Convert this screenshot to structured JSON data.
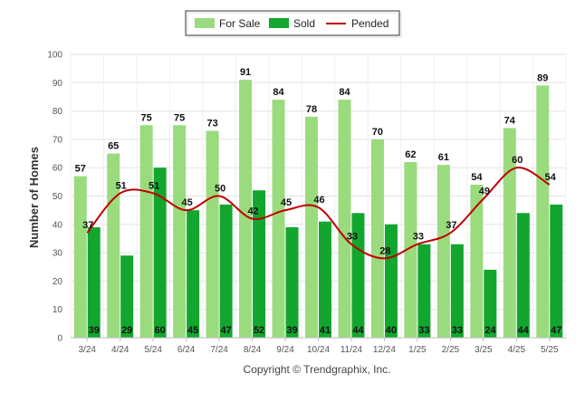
{
  "chart_data": {
    "type": "bar",
    "categories": [
      "3/24",
      "4/24",
      "5/24",
      "6/24",
      "7/24",
      "8/24",
      "9/24",
      "10/24",
      "11/24",
      "12/24",
      "1/25",
      "2/25",
      "3/25",
      "4/25",
      "5/25"
    ],
    "series": [
      {
        "name": "For Sale",
        "type": "bar",
        "color": "#9adb7e",
        "values": [
          57,
          65,
          75,
          75,
          73,
          91,
          84,
          78,
          84,
          70,
          62,
          61,
          54,
          74,
          89
        ]
      },
      {
        "name": "Sold",
        "type": "bar",
        "color": "#12a62f",
        "values": [
          39,
          29,
          60,
          45,
          47,
          52,
          39,
          41,
          44,
          40,
          33,
          33,
          24,
          44,
          47
        ]
      },
      {
        "name": "Pended",
        "type": "line",
        "color": "#c00000",
        "values": [
          37,
          51,
          51,
          45,
          50,
          42,
          45,
          46,
          33,
          28,
          33,
          37,
          49,
          60,
          54
        ]
      }
    ],
    "ylabel": "Number of Homes",
    "xlabel": "",
    "ylim": [
      0,
      100
    ],
    "yticks": [
      0,
      10,
      20,
      30,
      40,
      50,
      60,
      70,
      80,
      90,
      100
    ],
    "grid": true,
    "legend_position": "top-center",
    "data_labels": true
  },
  "footer": "Copyright © Trendgraphix, Inc."
}
